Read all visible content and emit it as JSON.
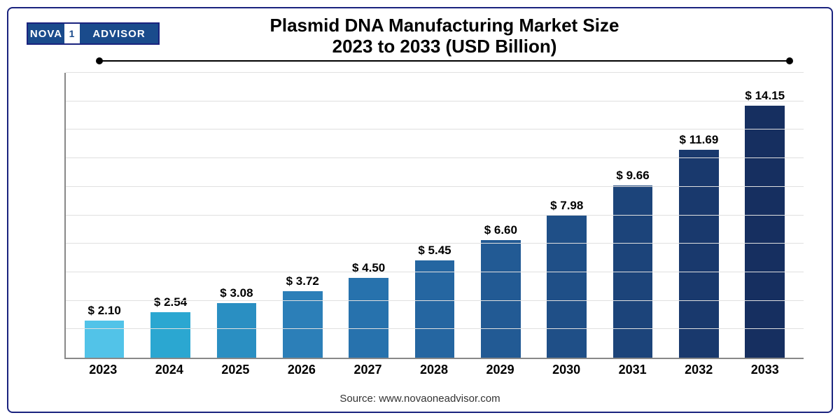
{
  "logo": {
    "seg1": "NOVA",
    "seg2": "1",
    "seg3": "ADVISOR"
  },
  "title_line1": "Plasmid DNA Manufacturing Market Size",
  "title_line2": "2023 to 2033 (USD Billion)",
  "source": "Source: www.novaoneadvisor.com",
  "chart": {
    "type": "bar",
    "y_max": 16.0,
    "grid_lines": 10,
    "grid_color": "#e0e0e0",
    "axis_color": "#888888",
    "background_color": "#ffffff",
    "label_prefix": "$ ",
    "label_fontsize": 17,
    "xaxis_fontsize": 18,
    "bar_width_pct": 60,
    "categories": [
      "2023",
      "2024",
      "2025",
      "2026",
      "2027",
      "2028",
      "2029",
      "2030",
      "2031",
      "2032",
      "2033"
    ],
    "values": [
      2.1,
      2.54,
      3.08,
      3.72,
      4.5,
      5.45,
      6.6,
      7.98,
      9.66,
      11.69,
      14.15
    ],
    "value_labels": [
      "2.10",
      "2.54",
      "3.08",
      "3.72",
      "4.50",
      "5.45",
      "6.60",
      "7.98",
      "9.66",
      "11.69",
      "14.15"
    ],
    "bar_colors": [
      "#52c3e8",
      "#2ba7d1",
      "#2a8fc2",
      "#2c7fb8",
      "#2772ad",
      "#2566a1",
      "#225a94",
      "#1f4f87",
      "#1c447a",
      "#19396d",
      "#162f60"
    ]
  }
}
